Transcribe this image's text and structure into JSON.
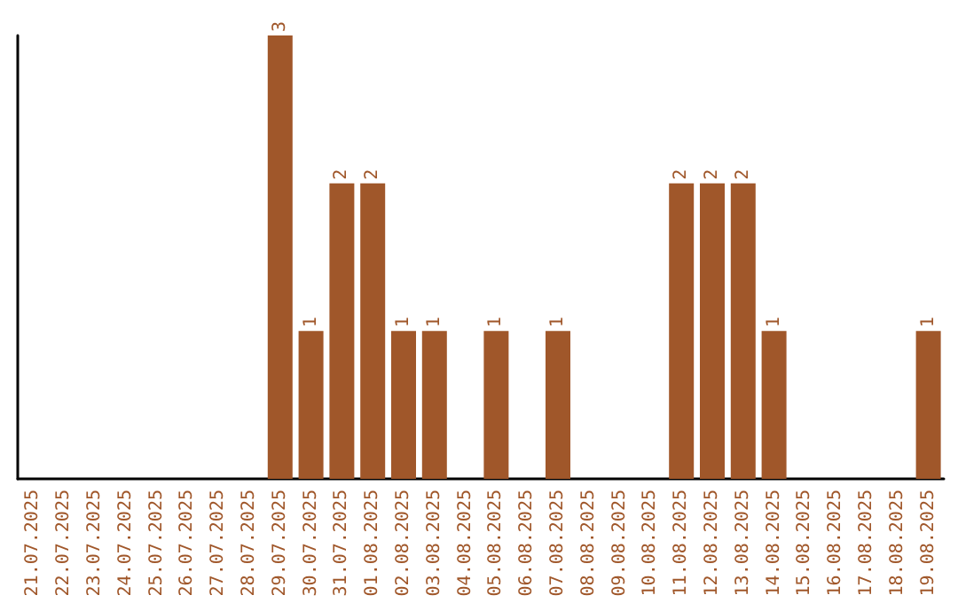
{
  "chart_data": {
    "type": "bar",
    "categories": [
      "21.07.2025",
      "22.07.2025",
      "23.07.2025",
      "24.07.2025",
      "25.07.2025",
      "26.07.2025",
      "27.07.2025",
      "28.07.2025",
      "29.07.2025",
      "30.07.2025",
      "31.07.2025",
      "01.08.2025",
      "02.08.2025",
      "03.08.2025",
      "04.08.2025",
      "05.08.2025",
      "06.08.2025",
      "07.08.2025",
      "08.08.2025",
      "09.08.2025",
      "10.08.2025",
      "11.08.2025",
      "12.08.2025",
      "13.08.2025",
      "14.08.2025",
      "15.08.2025",
      "16.08.2025",
      "17.08.2025",
      "18.08.2025",
      "19.08.2025"
    ],
    "values": [
      0,
      0,
      0,
      0,
      0,
      0,
      0,
      0,
      3,
      1,
      2,
      2,
      1,
      1,
      0,
      1,
      0,
      1,
      0,
      0,
      0,
      2,
      2,
      2,
      1,
      0,
      0,
      0,
      0,
      1
    ],
    "value_labels": [
      null,
      null,
      null,
      null,
      null,
      null,
      null,
      null,
      "3",
      "1",
      "2",
      "2",
      "1",
      "1",
      null,
      "1",
      null,
      "1",
      null,
      null,
      null,
      "2",
      "2",
      "2",
      "1",
      null,
      null,
      null,
      null,
      "1"
    ],
    "color": "#a0572a",
    "tick_labels": "x"
  }
}
